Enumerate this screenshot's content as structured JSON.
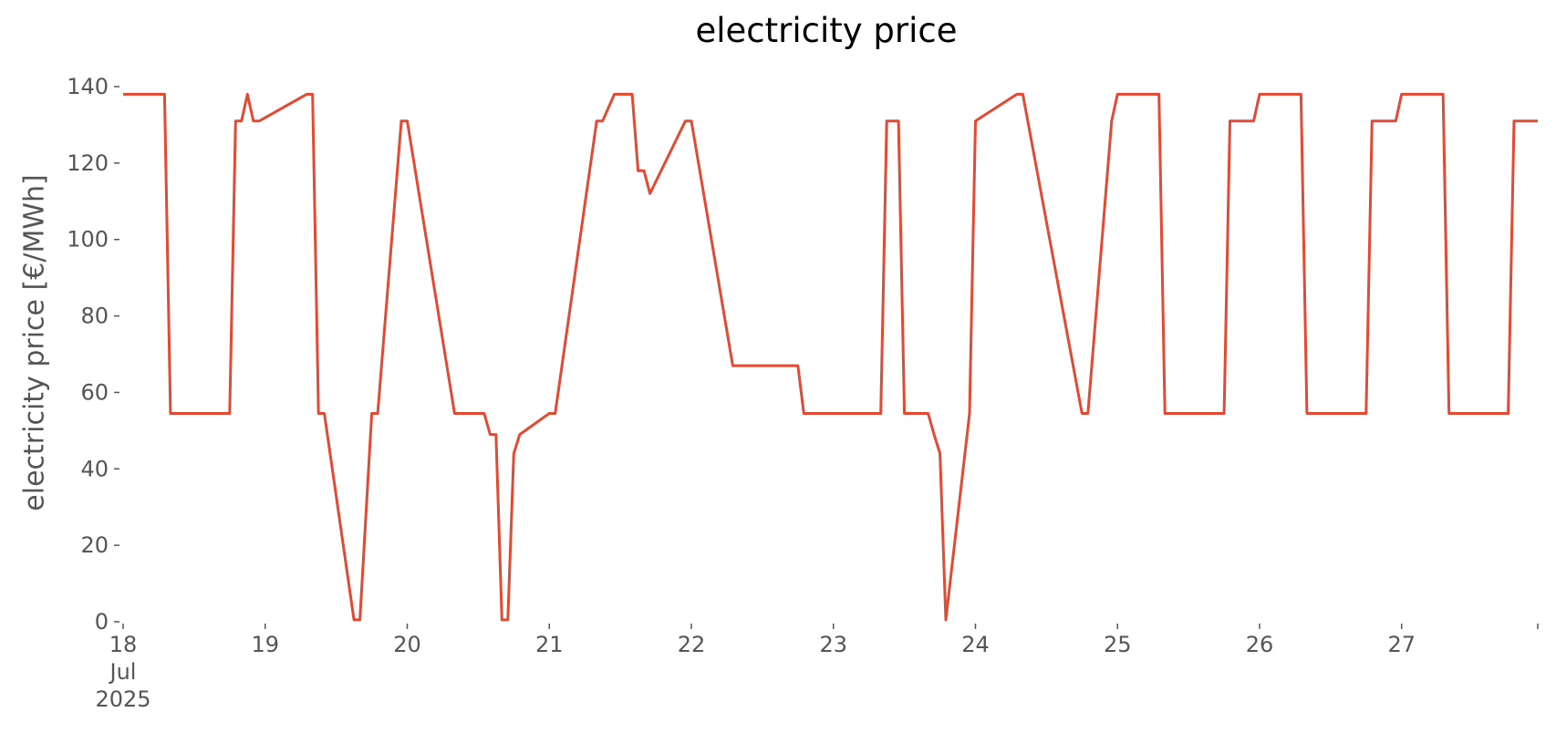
{
  "chart_data": {
    "type": "line",
    "title": "electricity price",
    "xlabel": "",
    "ylabel": "electricity price [€/MWh]",
    "ylim": [
      0,
      140
    ],
    "xlim": [
      "2025-07-18 00:00",
      "2025-07-27 23:00"
    ],
    "yticks": [
      0,
      20,
      40,
      60,
      80,
      100,
      120,
      140
    ],
    "xticks": [
      {
        "x": "2025-07-18 00:00",
        "label": [
          "18",
          "Jul",
          "2025"
        ]
      },
      {
        "x": "2025-07-19 00:00",
        "label": [
          "19"
        ]
      },
      {
        "x": "2025-07-20 00:00",
        "label": [
          "20"
        ]
      },
      {
        "x": "2025-07-21 00:00",
        "label": [
          "21"
        ]
      },
      {
        "x": "2025-07-22 00:00",
        "label": [
          "22"
        ]
      },
      {
        "x": "2025-07-23 00:00",
        "label": [
          "23"
        ]
      },
      {
        "x": "2025-07-24 00:00",
        "label": [
          "24"
        ]
      },
      {
        "x": "2025-07-25 00:00",
        "label": [
          "25"
        ]
      },
      {
        "x": "2025-07-26 00:00",
        "label": [
          "26"
        ]
      },
      {
        "x": "2025-07-27 00:00",
        "label": [
          "27"
        ]
      }
    ],
    "grid": false,
    "colors": {
      "line": "#E24A33",
      "ticks": "#555555"
    },
    "series": [
      {
        "x": [
          "2025-07-18 00:00",
          "2025-07-18 07:00",
          "2025-07-18 08:00",
          "2025-07-18 18:00",
          "2025-07-18 19:00",
          "2025-07-18 20:00",
          "2025-07-18 21:00",
          "2025-07-18 22:00",
          "2025-07-18 23:00",
          "2025-07-19 07:00",
          "2025-07-19 08:00",
          "2025-07-19 09:00",
          "2025-07-19 10:00",
          "2025-07-19 15:00",
          "2025-07-19 16:00",
          "2025-07-19 18:00",
          "2025-07-19 19:00",
          "2025-07-19 23:00",
          "2025-07-20 00:00",
          "2025-07-20 08:00",
          "2025-07-20 09:00",
          "2025-07-20 10:00",
          "2025-07-20 11:00",
          "2025-07-20 13:00",
          "2025-07-20 14:00",
          "2025-07-20 15:00",
          "2025-07-20 16:00",
          "2025-07-20 17:00",
          "2025-07-20 18:00",
          "2025-07-20 19:00",
          "2025-07-21 00:00",
          "2025-07-21 01:00",
          "2025-07-21 08:00",
          "2025-07-21 09:00",
          "2025-07-21 11:00",
          "2025-07-21 12:00",
          "2025-07-21 13:00",
          "2025-07-21 14:00",
          "2025-07-21 15:00",
          "2025-07-21 16:00",
          "2025-07-21 17:00",
          "2025-07-21 23:00",
          "2025-07-22 00:00",
          "2025-07-22 07:00",
          "2025-07-22 08:00",
          "2025-07-22 18:00",
          "2025-07-22 19:00",
          "2025-07-22 23:00",
          "2025-07-23 00:00",
          "2025-07-23 08:00",
          "2025-07-23 09:00",
          "2025-07-23 11:00",
          "2025-07-23 12:00",
          "2025-07-23 13:00",
          "2025-07-23 14:00",
          "2025-07-23 15:00",
          "2025-07-23 16:00",
          "2025-07-23 17:00",
          "2025-07-23 18:00",
          "2025-07-23 19:00",
          "2025-07-23 23:00",
          "2025-07-24 00:00",
          "2025-07-24 07:00",
          "2025-07-24 08:00",
          "2025-07-24 18:00",
          "2025-07-24 19:00",
          "2025-07-24 23:00",
          "2025-07-25 00:00",
          "2025-07-25 07:00",
          "2025-07-25 08:00",
          "2025-07-25 18:00",
          "2025-07-25 19:00",
          "2025-07-25 23:00",
          "2025-07-26 00:00",
          "2025-07-26 07:00",
          "2025-07-26 08:00",
          "2025-07-26 18:00",
          "2025-07-26 19:00",
          "2025-07-26 23:00",
          "2025-07-27 00:00",
          "2025-07-27 07:00",
          "2025-07-27 08:00",
          "2025-07-27 18:00",
          "2025-07-27 19:00",
          "2025-07-27 23:00"
        ],
        "y": [
          138,
          138,
          54.5,
          54.5,
          131,
          131,
          138,
          131,
          131,
          138,
          138,
          54.5,
          54.5,
          0.5,
          0.5,
          54.5,
          54.5,
          131,
          131,
          54.5,
          54.5,
          54.5,
          54.5,
          54.5,
          49,
          49,
          0.5,
          0.5,
          44,
          49,
          54.5,
          54.5,
          131,
          131,
          138,
          138,
          138,
          138,
          118,
          118,
          112,
          131,
          131,
          67,
          67,
          67,
          54.5,
          54.5,
          54.5,
          54.5,
          131,
          131,
          54.5,
          54.5,
          54.5,
          54.5,
          54.5,
          49,
          44,
          0.5,
          54.5,
          131,
          138,
          138,
          54.5,
          54.5,
          131,
          138,
          138,
          54.5,
          54.5,
          131,
          131,
          138,
          138,
          54.5,
          54.5,
          131,
          131,
          138,
          138,
          54.5,
          54.5,
          131,
          131
        ]
      }
    ]
  }
}
